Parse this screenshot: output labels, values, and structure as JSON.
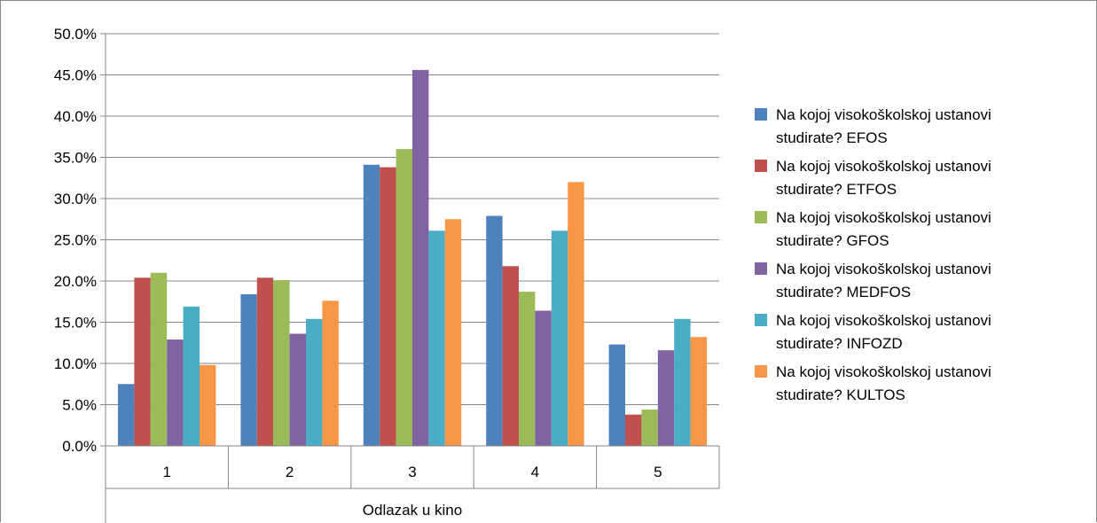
{
  "chart_data": {
    "type": "bar",
    "xlabel": "Odlazak u kino",
    "ylabel": "",
    "ylim": [
      0,
      50
    ],
    "y_tick_labels": [
      "0.0%",
      "5.0%",
      "10.0%",
      "15.0%",
      "20.0%",
      "25.0%",
      "30.0%",
      "35.0%",
      "40.0%",
      "45.0%",
      "50.0%"
    ],
    "grid": true,
    "legend_position": "right",
    "categories": [
      "1",
      "2",
      "3",
      "4",
      "5"
    ],
    "series": [
      {
        "name": "Na kojoj visokoškolskoj ustanovi studirate? EFOS",
        "color": "#4F81BD",
        "values": [
          7.5,
          18.4,
          34.1,
          27.9,
          12.3
        ]
      },
      {
        "name": "Na kojoj visokoškolskoj ustanovi studirate? ETFOS",
        "color": "#C0504D",
        "values": [
          20.4,
          20.4,
          33.8,
          21.8,
          3.8
        ]
      },
      {
        "name": "Na kojoj visokoškolskoj ustanovi studirate? GFOS",
        "color": "#9BBB59",
        "values": [
          21.0,
          20.1,
          36.0,
          18.7,
          4.4
        ]
      },
      {
        "name": "Na kojoj visokoškolskoj ustanovi studirate? MEDFOS",
        "color": "#8064A2",
        "values": [
          12.9,
          13.6,
          45.6,
          16.4,
          11.6
        ]
      },
      {
        "name": "Na kojoj visokoškolskoj ustanovi studirate? INFOZD",
        "color": "#4BACC6",
        "values": [
          16.9,
          15.4,
          26.1,
          26.1,
          15.4
        ]
      },
      {
        "name": "Na kojoj visokoškolskoj ustanovi studirate? KULTOS",
        "color": "#F79646",
        "values": [
          9.8,
          17.6,
          27.5,
          32.0,
          13.2
        ]
      }
    ]
  }
}
